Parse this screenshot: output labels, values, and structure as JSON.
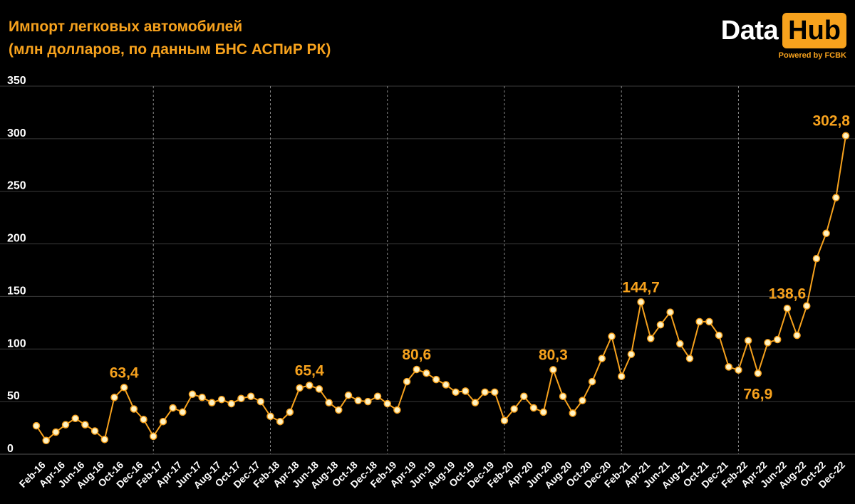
{
  "title_line1": "Импорт легковых автомобилей",
  "title_line2": "(млн долларов, по данным БНС АСПиР РК)",
  "logo": {
    "data": "Data",
    "hub": "Hub",
    "powered": "Powered by FCBK"
  },
  "colors": {
    "accent": "#f7a21d",
    "background": "#000000",
    "grid": "#444444",
    "axis_text": "#ffffff"
  },
  "chart_data": {
    "type": "line",
    "ylim": [
      0,
      350
    ],
    "yticks": [
      0,
      50,
      100,
      150,
      200,
      250,
      300,
      350
    ],
    "x": [
      "Jan-16",
      "Feb-16",
      "Mar-16",
      "Apr-16",
      "May-16",
      "Jun-16",
      "Jul-16",
      "Aug-16",
      "Sep-16",
      "Oct-16",
      "Nov-16",
      "Dec-16",
      "Jan-17",
      "Feb-17",
      "Mar-17",
      "Apr-17",
      "May-17",
      "Jun-17",
      "Jul-17",
      "Aug-17",
      "Sep-17",
      "Oct-17",
      "Nov-17",
      "Dec-17",
      "Jan-18",
      "Feb-18",
      "Mar-18",
      "Apr-18",
      "May-18",
      "Jun-18",
      "Jul-18",
      "Aug-18",
      "Sep-18",
      "Oct-18",
      "Nov-18",
      "Dec-18",
      "Jan-19",
      "Feb-19",
      "Mar-19",
      "Apr-19",
      "May-19",
      "Jun-19",
      "Jul-19",
      "Aug-19",
      "Sep-19",
      "Oct-19",
      "Nov-19",
      "Dec-19",
      "Jan-20",
      "Feb-20",
      "Mar-20",
      "Apr-20",
      "May-20",
      "Jun-20",
      "Jul-20",
      "Aug-20",
      "Sep-20",
      "Oct-20",
      "Nov-20",
      "Dec-20",
      "Jan-21",
      "Feb-21",
      "Mar-21",
      "Apr-21",
      "May-21",
      "Jun-21",
      "Jul-21",
      "Aug-21",
      "Sep-21",
      "Oct-21",
      "Nov-21",
      "Dec-21",
      "Jan-22",
      "Feb-22",
      "Mar-22",
      "Apr-22",
      "May-22",
      "Jun-22",
      "Jul-22",
      "Aug-22",
      "Sep-22",
      "Oct-22",
      "Nov-22",
      "Dec-22"
    ],
    "tick_labels": [
      "Feb-16",
      "Apr-16",
      "Jun-16",
      "Aug-16",
      "Oct-16",
      "Dec-16",
      "Feb-17",
      "Apr-17",
      "Jun-17",
      "Aug-17",
      "Oct-17",
      "Dec-17",
      "Feb-18",
      "Apr-18",
      "Jun-18",
      "Aug-18",
      "Oct-18",
      "Dec-18",
      "Feb-19",
      "Apr-19",
      "Jun-19",
      "Aug-19",
      "Oct-19",
      "Dec-19",
      "Feb-20",
      "Apr-20",
      "Jun-20",
      "Aug-20",
      "Oct-20",
      "Dec-20",
      "Feb-21",
      "Apr-21",
      "Jun-21",
      "Aug-21",
      "Oct-21",
      "Dec-21",
      "Feb-22",
      "Apr-22",
      "Jun-22",
      "Aug-22",
      "Oct-22",
      "Dec-22"
    ],
    "values": [
      27,
      13,
      21,
      28,
      34,
      28,
      22,
      14,
      54,
      63.4,
      43,
      33,
      17,
      31,
      44,
      40,
      57,
      54,
      49,
      52,
      48,
      53,
      55,
      50,
      36,
      31,
      40,
      63,
      65.4,
      62,
      49,
      42,
      56,
      51,
      50,
      55,
      48,
      42,
      69,
      80.6,
      77,
      71,
      66,
      59,
      60,
      49,
      59,
      59,
      32,
      43,
      55,
      44,
      40,
      80.3,
      55,
      39,
      51,
      69,
      91,
      112,
      74,
      95,
      144.7,
      110,
      123,
      135,
      105,
      91,
      126,
      126,
      113,
      83,
      80,
      108,
      76.9,
      106,
      109,
      138.6,
      113,
      141,
      186,
      210,
      244,
      302.8
    ],
    "annotations": [
      {
        "x": "Oct-16",
        "label": "63,4"
      },
      {
        "x": "May-18",
        "label": "65,4"
      },
      {
        "x": "Apr-19",
        "label": "80,6"
      },
      {
        "x": "Jun-20",
        "label": "80,3"
      },
      {
        "x": "Mar-21",
        "label": "144,7"
      },
      {
        "x": "Mar-22",
        "label": "76,9",
        "below": true
      },
      {
        "x": "Jun-22",
        "label": "138,6"
      },
      {
        "x": "Dec-22",
        "label": "302,8"
      }
    ],
    "vertical_separators": [
      "Jan-17",
      "Jan-18",
      "Jan-19",
      "Jan-20",
      "Jan-21",
      "Jan-22"
    ],
    "grid": true
  }
}
